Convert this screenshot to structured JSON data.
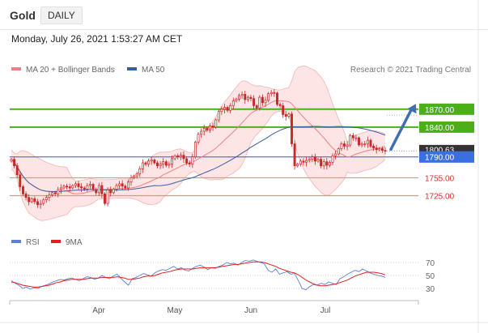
{
  "header": {
    "instrument": "Gold",
    "period": "DAILY",
    "timestamp": "Monday, July 26, 2021 1:53:27 AM CET"
  },
  "legend": {
    "ma20": "MA 20 + Bollinger Bands",
    "ma50": "MA 50",
    "rsi": "RSI",
    "rsi_ma": "9MA"
  },
  "copyright": "Research © 2021 Trading Central",
  "colors": {
    "ma20": "#f08080",
    "ma50": "#3a5fa0",
    "bollinger_fill": "#fde0e0",
    "resistance": "#4caf1a",
    "pivot": "#3a6fe0",
    "support": "#f08a8a",
    "candle": "#c62828",
    "rsi": "#5b7fd6",
    "rsi_ma": "#e02020",
    "arrow": "#3f6fb0"
  },
  "chart_data": [
    {
      "type": "candlestick",
      "title": "Gold",
      "subtitle": "DAILY",
      "xlabel": "",
      "ylabel": "",
      "x_ticks": [
        "Apr",
        "May",
        "Jun",
        "Jul"
      ],
      "ylim": [
        1670,
        1920
      ],
      "last_price": "1800.63",
      "levels": [
        {
          "label": "1870.00",
          "value": 1870,
          "kind": "resistance"
        },
        {
          "label": "1840.00",
          "value": 1840,
          "kind": "resistance"
        },
        {
          "label": "1790.00",
          "value": 1790,
          "kind": "pivot"
        },
        {
          "label": "1755.00",
          "value": 1755,
          "kind": "support"
        },
        {
          "label": "1725.00",
          "value": 1725,
          "kind": "support"
        }
      ],
      "forecast": {
        "from": 1800,
        "to": 1870,
        "direction": "up"
      },
      "closes": [
        1786,
        1775,
        1760,
        1740,
        1728,
        1722,
        1715,
        1720,
        1715,
        1710,
        1712,
        1718,
        1722,
        1726,
        1730,
        1728,
        1735,
        1738,
        1741,
        1740,
        1738,
        1742,
        1745,
        1740,
        1738,
        1736,
        1742,
        1744,
        1735,
        1730,
        1742,
        1728,
        1712,
        1735,
        1730,
        1736,
        1742,
        1745,
        1741,
        1738,
        1748,
        1755,
        1758,
        1762,
        1770,
        1780,
        1778,
        1783,
        1785,
        1780,
        1775,
        1778,
        1782,
        1776,
        1778,
        1787,
        1792,
        1790,
        1793,
        1787,
        1780,
        1778,
        1790,
        1815,
        1828,
        1833,
        1838,
        1835,
        1842,
        1840,
        1852,
        1866,
        1870,
        1873,
        1868,
        1876,
        1884,
        1887,
        1893,
        1895,
        1886,
        1890,
        1888,
        1876,
        1872,
        1890,
        1881,
        1885,
        1896,
        1898,
        1897,
        1878,
        1876,
        1861,
        1858,
        1862,
        1812,
        1775,
        1778,
        1783,
        1781,
        1784,
        1786,
        1790,
        1783,
        1786,
        1775,
        1782,
        1776,
        1781,
        1792,
        1795,
        1804,
        1812,
        1808,
        1810,
        1826,
        1822,
        1822,
        1810,
        1812,
        1812,
        1818,
        1808,
        1805,
        1802,
        1804,
        1801,
        1800
      ]
    },
    {
      "type": "line",
      "title": "RSI",
      "xlabel": "",
      "ylabel": "",
      "ylim": [
        20,
        80
      ],
      "y_ticks": [
        70,
        50,
        30
      ],
      "series": [
        {
          "name": "RSI",
          "values": [
            42,
            38,
            35,
            30,
            32,
            29,
            31,
            30,
            33,
            35,
            37,
            40,
            42,
            44,
            43,
            45,
            46,
            44,
            42,
            45,
            48,
            47,
            44,
            46,
            50,
            47,
            45,
            49,
            52,
            46,
            40,
            35,
            45,
            47,
            50,
            53,
            51,
            49,
            54,
            57,
            59,
            58,
            61,
            64,
            60,
            62,
            58,
            57,
            61,
            64,
            66,
            63,
            59,
            62,
            61,
            64,
            66,
            70,
            68,
            69,
            66,
            70,
            73,
            72,
            74,
            72,
            70,
            68,
            58,
            55,
            60,
            52,
            54,
            56,
            52,
            53,
            42,
            30,
            28,
            33,
            36,
            35,
            38,
            36,
            40,
            38,
            36,
            45,
            48,
            52,
            55,
            58,
            56,
            60,
            57,
            54,
            52,
            50,
            49,
            47
          ]
        },
        {
          "name": "9MA",
          "values": [
            40,
            39,
            37,
            35,
            34,
            33,
            32,
            32,
            33,
            34,
            35,
            37,
            39,
            40,
            42,
            43,
            44,
            44,
            44,
            44,
            45,
            46,
            46,
            46,
            47,
            47,
            47,
            47,
            48,
            47,
            46,
            44,
            44,
            45,
            46,
            48,
            49,
            49,
            50,
            52,
            54,
            55,
            56,
            58,
            59,
            60,
            60,
            60,
            60,
            61,
            62,
            62,
            62,
            62,
            62,
            63,
            64,
            65,
            66,
            67,
            67,
            68,
            69,
            70,
            71,
            71,
            71,
            70,
            68,
            66,
            64,
            61,
            59,
            57,
            55,
            54,
            51,
            47,
            43,
            40,
            37,
            35,
            34,
            34,
            35,
            36,
            37,
            39,
            41,
            43,
            46,
            49,
            51,
            53,
            55,
            55,
            55,
            54,
            53,
            51
          ]
        }
      ]
    }
  ]
}
